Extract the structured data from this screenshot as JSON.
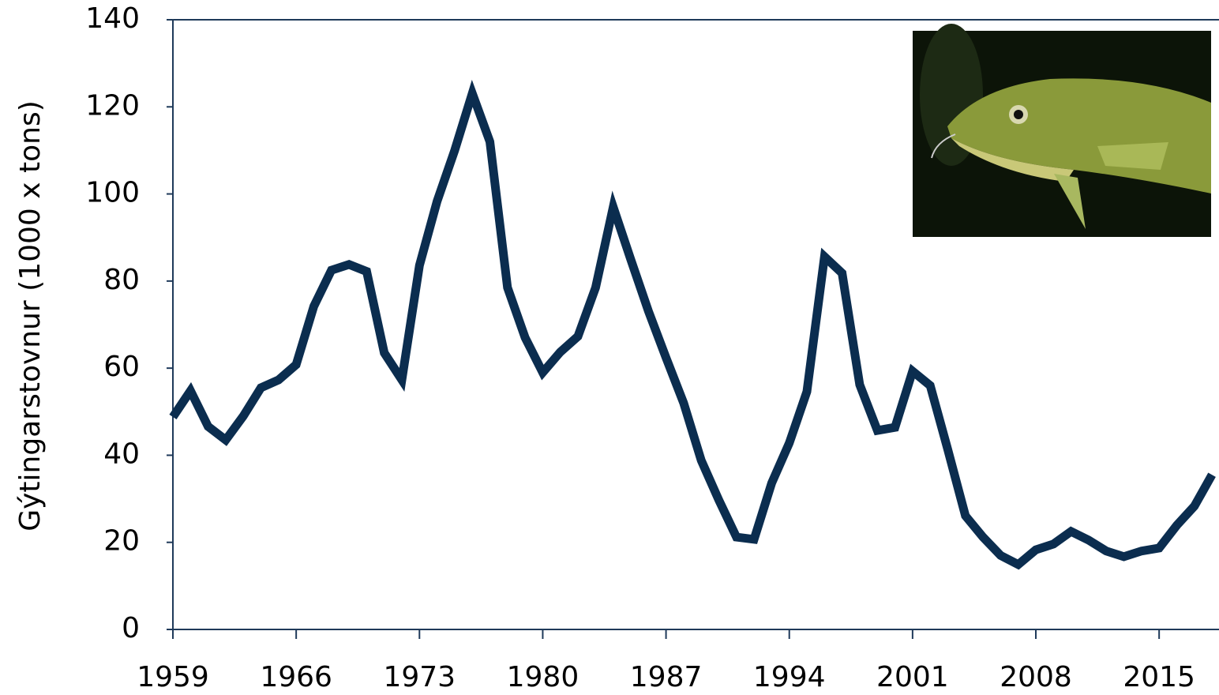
{
  "chart_data": {
    "type": "line",
    "y_label": "Gýtingarstovnur (1000 x tons)",
    "x": [
      1959,
      1960,
      1961,
      1962,
      1963,
      1964,
      1965,
      1966,
      1967,
      1968,
      1969,
      1970,
      1971,
      1972,
      1973,
      1974,
      1975,
      1976,
      1977,
      1978,
      1979,
      1980,
      1981,
      1982,
      1983,
      1984,
      1985,
      1986,
      1987,
      1988,
      1989,
      1990,
      1991,
      1992,
      1993,
      1994,
      1995,
      1996,
      1997,
      1998,
      1999,
      2000,
      2001,
      2002,
      2003,
      2004,
      2005,
      2006,
      2007,
      2008,
      2009,
      2010,
      2011,
      2012,
      2013,
      2014,
      2015,
      2016,
      2017,
      2018
    ],
    "series": [
      {
        "color": "#0b2d4f",
        "values": [
          48.8,
          54.8,
          46.6,
          43.5,
          49,
          55.5,
          57.3,
          60.8,
          74.2,
          82.5,
          83.8,
          82.2,
          63.5,
          57.3,
          83.6,
          98.3,
          110,
          123.1,
          112,
          78.5,
          67,
          59,
          63.7,
          67.3,
          78.5,
          97,
          84.9,
          73.1,
          62.4,
          52,
          38.8,
          29.7,
          21.2,
          20.7,
          33.6,
          42.8,
          54.6,
          85.6,
          81.8,
          56.2,
          45.7,
          46.4,
          59.3,
          56,
          41.3,
          26.1,
          21.2,
          17,
          14.9,
          18.3,
          19.6,
          22.5,
          20.5,
          18,
          16.7,
          18,
          18.7,
          23.9,
          28.3,
          35.5
        ]
      }
    ],
    "xlim": [
      1959,
      2018.4
    ],
    "xticks": [
      1959,
      1966,
      1973,
      1980,
      1987,
      1994,
      2001,
      2008,
      2015
    ],
    "ylim": [
      0,
      140
    ],
    "yticks": [
      0,
      20,
      40,
      60,
      80,
      100,
      120,
      140
    ],
    "grid": false
  }
}
